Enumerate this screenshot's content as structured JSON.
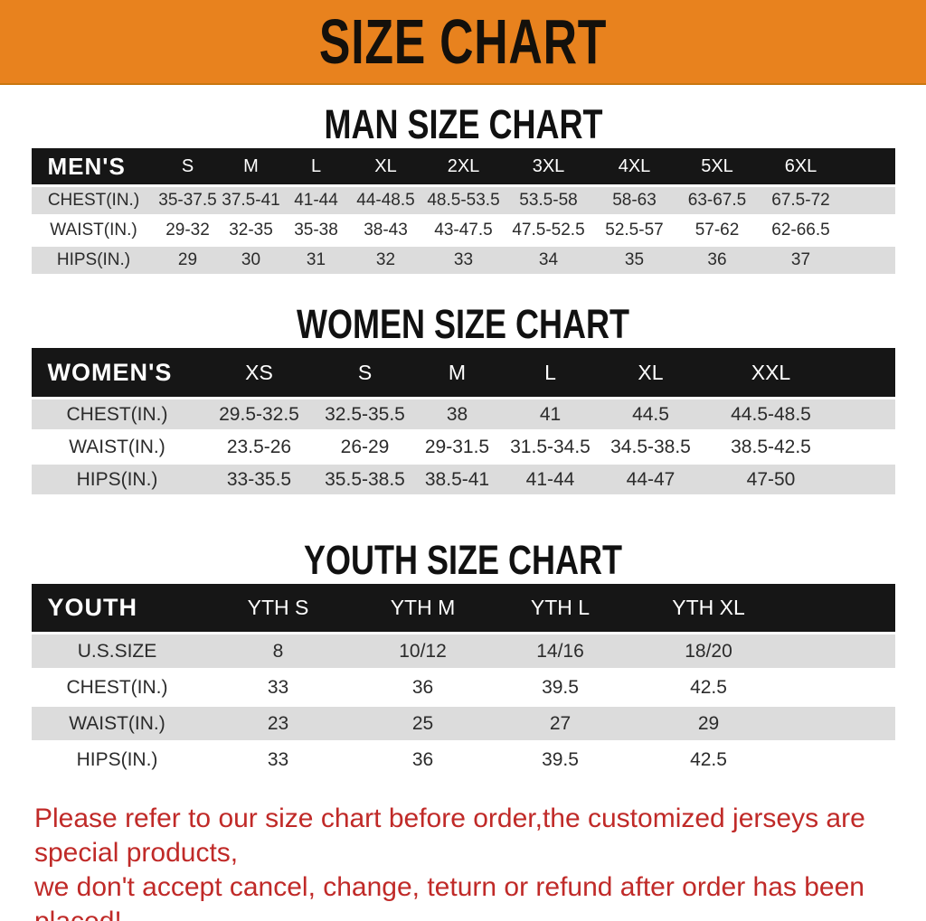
{
  "banner": {
    "title": "SIZE CHART",
    "bg_color": "#E8821E",
    "text_color": "#14100b"
  },
  "colors": {
    "table_header_bg": "#161616",
    "table_header_text": "#ffffff",
    "row_gray": "#DCDCDC",
    "row_white": "#ffffff",
    "disclaimer_red": "#C02A28"
  },
  "sections": {
    "men": {
      "title": "MAN SIZE CHART",
      "header_label": "MEN'S",
      "sizes": [
        "S",
        "M",
        "L",
        "XL",
        "2XL",
        "3XL",
        "4XL",
        "5XL",
        "6XL"
      ],
      "rows": [
        {
          "label": "CHEST(IN.)",
          "values": [
            "35-37.5",
            "37.5-41",
            "41-44",
            "44-48.5",
            "48.5-53.5",
            "53.5-58",
            "58-63",
            "63-67.5",
            "67.5-72"
          ]
        },
        {
          "label": "WAIST(IN.)",
          "values": [
            "29-32",
            "32-35",
            "35-38",
            "38-43",
            "43-47.5",
            "47.5-52.5",
            "52.5-57",
            "57-62",
            "62-66.5"
          ]
        },
        {
          "label": "HIPS(IN.)",
          "values": [
            "29",
            "30",
            "31",
            "32",
            "33",
            "34",
            "35",
            "36",
            "37"
          ]
        }
      ]
    },
    "women": {
      "title": "WOMEN SIZE CHART",
      "header_label": "WOMEN'S",
      "sizes": [
        "XS",
        "S",
        "M",
        "L",
        "XL",
        "XXL"
      ],
      "rows": [
        {
          "label": "CHEST(IN.)",
          "values": [
            "29.5-32.5",
            "32.5-35.5",
            "38",
            "41",
            "44.5",
            "44.5-48.5"
          ]
        },
        {
          "label": "WAIST(IN.)",
          "values": [
            "23.5-26",
            "26-29",
            "29-31.5",
            "31.5-34.5",
            "34.5-38.5",
            "38.5-42.5"
          ]
        },
        {
          "label": "HIPS(IN.)",
          "values": [
            "33-35.5",
            "35.5-38.5",
            "38.5-41",
            "41-44",
            "44-47",
            "47-50"
          ]
        }
      ]
    },
    "youth": {
      "title": "YOUTH SIZE CHART",
      "header_label": "YOUTH",
      "sizes": [
        "YTH S",
        "YTH M",
        "YTH L",
        "YTH XL"
      ],
      "rows": [
        {
          "label": "U.S.SIZE",
          "values": [
            "8",
            "10/12",
            "14/16",
            "18/20"
          ]
        },
        {
          "label": "CHEST(IN.)",
          "values": [
            "33",
            "36",
            "39.5",
            "42.5"
          ]
        },
        {
          "label": "WAIST(IN.)",
          "values": [
            "23",
            "25",
            "27",
            "29"
          ]
        },
        {
          "label": "HIPS(IN.)",
          "values": [
            "33",
            "36",
            "39.5",
            "42.5"
          ]
        }
      ]
    }
  },
  "disclaimer": {
    "line1": "Please refer to our size chart before order,the customized jerseys are special products,",
    "line2": "we don't accept cancel, change, teturn or refund after order has been placed!"
  }
}
